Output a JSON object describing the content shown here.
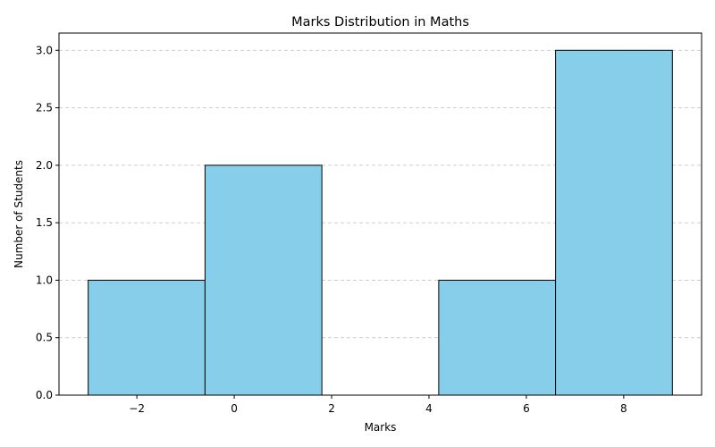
{
  "chart_data": {
    "type": "bar",
    "title": "Marks Distribution in Maths",
    "xlabel": "Marks",
    "ylabel": "Number of Students",
    "bins": [
      {
        "start": -3.0,
        "end": -0.6,
        "count": 1
      },
      {
        "start": -0.6,
        "end": 1.8,
        "count": 2
      },
      {
        "start": 1.8,
        "end": 4.2,
        "count": 0
      },
      {
        "start": 4.2,
        "end": 6.6,
        "count": 1
      },
      {
        "start": 6.6,
        "end": 9.0,
        "count": 3
      }
    ],
    "xlim": [
      -3.6,
      9.6
    ],
    "ylim": [
      0,
      3.15
    ],
    "xticks": [
      -2,
      0,
      2,
      4,
      6,
      8
    ],
    "xtick_labels": [
      "−2",
      "0",
      "2",
      "4",
      "6",
      "8"
    ],
    "yticks": [
      0.0,
      0.5,
      1.0,
      1.5,
      2.0,
      2.5,
      3.0
    ],
    "ytick_labels": [
      "0.0",
      "0.5",
      "1.0",
      "1.5",
      "2.0",
      "2.5",
      "3.0"
    ],
    "grid": {
      "axis": "y",
      "style": "dashed"
    },
    "bar_color": "#87CEEB",
    "edge_color": "#000000"
  }
}
